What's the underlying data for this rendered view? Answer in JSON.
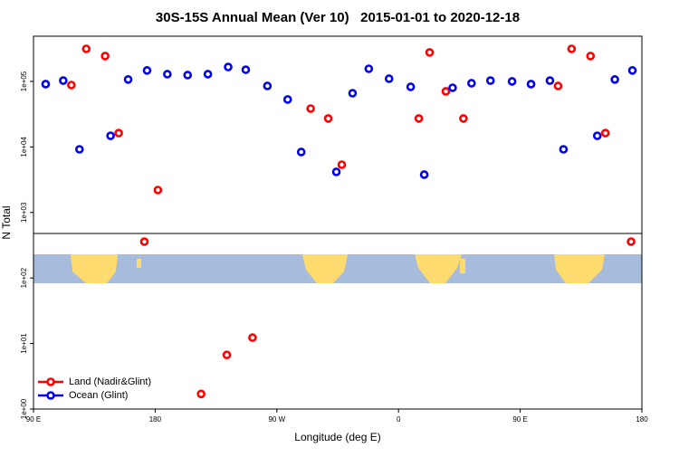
{
  "chart_data": {
    "type": "scatter",
    "title": "30S-15S Annual Mean (Ver 10)   2015-01-01 to 2020-12-18",
    "xlabel": "Longitude (deg E)",
    "ylabel": "N Total",
    "xlim": [
      90,
      540
    ],
    "ylim": [
      1,
      490000
    ],
    "log_y": true,
    "legend": "lower left",
    "xticks": [
      {
        "value": 90,
        "label": "90 E"
      },
      {
        "value": 180,
        "label": "180"
      },
      {
        "value": 270,
        "label": "90 W"
      },
      {
        "value": 360,
        "label": "0"
      },
      {
        "value": 450,
        "label": "90 E"
      },
      {
        "value": 540,
        "label": "180"
      }
    ],
    "yticks": [
      {
        "value": 1,
        "label": "1e+00"
      },
      {
        "value": 10,
        "label": "1e+01"
      },
      {
        "value": 100,
        "label": "1e+02"
      },
      {
        "value": 1000,
        "label": "1e+03"
      },
      {
        "value": 10000,
        "label": "1e+04"
      },
      {
        "value": 100000,
        "label": "1e+05"
      }
    ],
    "series": [
      {
        "name": "Land (Nadir&Glint)",
        "color": "#ff0000",
        "x": [
          118,
          129,
          143,
          153,
          172,
          182,
          214,
          233,
          252,
          295,
          308,
          318,
          375,
          383,
          395,
          408,
          478,
          488,
          502,
          513,
          532
        ],
        "values": [
          88000,
          314000,
          244000,
          16300,
          359,
          2200,
          1.7,
          6.7,
          12.3,
          38500,
          27200,
          5360,
          27200,
          277000,
          70500,
          27200,
          85300,
          314000,
          244000,
          16300,
          359
        ]
      },
      {
        "name": "Ocean (Glint)",
        "color": "#0000ee",
        "x": [
          99,
          112,
          124,
          147,
          160,
          174,
          189,
          204,
          219,
          234,
          247,
          263,
          278,
          288,
          314,
          326,
          338,
          353,
          369,
          379,
          400,
          414,
          428,
          444,
          458,
          472,
          482,
          507,
          520,
          533
        ],
        "values": [
          91000,
          103000,
          9200,
          14800,
          107000,
          147000,
          129000,
          125000,
          129000,
          166000,
          151000,
          85300,
          53000,
          8370,
          4160,
          66100,
          156000,
          110000,
          82600,
          3780,
          80000,
          93800,
          103000,
          100000,
          91000,
          103000,
          9200,
          14800,
          107000,
          147000
        ]
      }
    ]
  }
}
